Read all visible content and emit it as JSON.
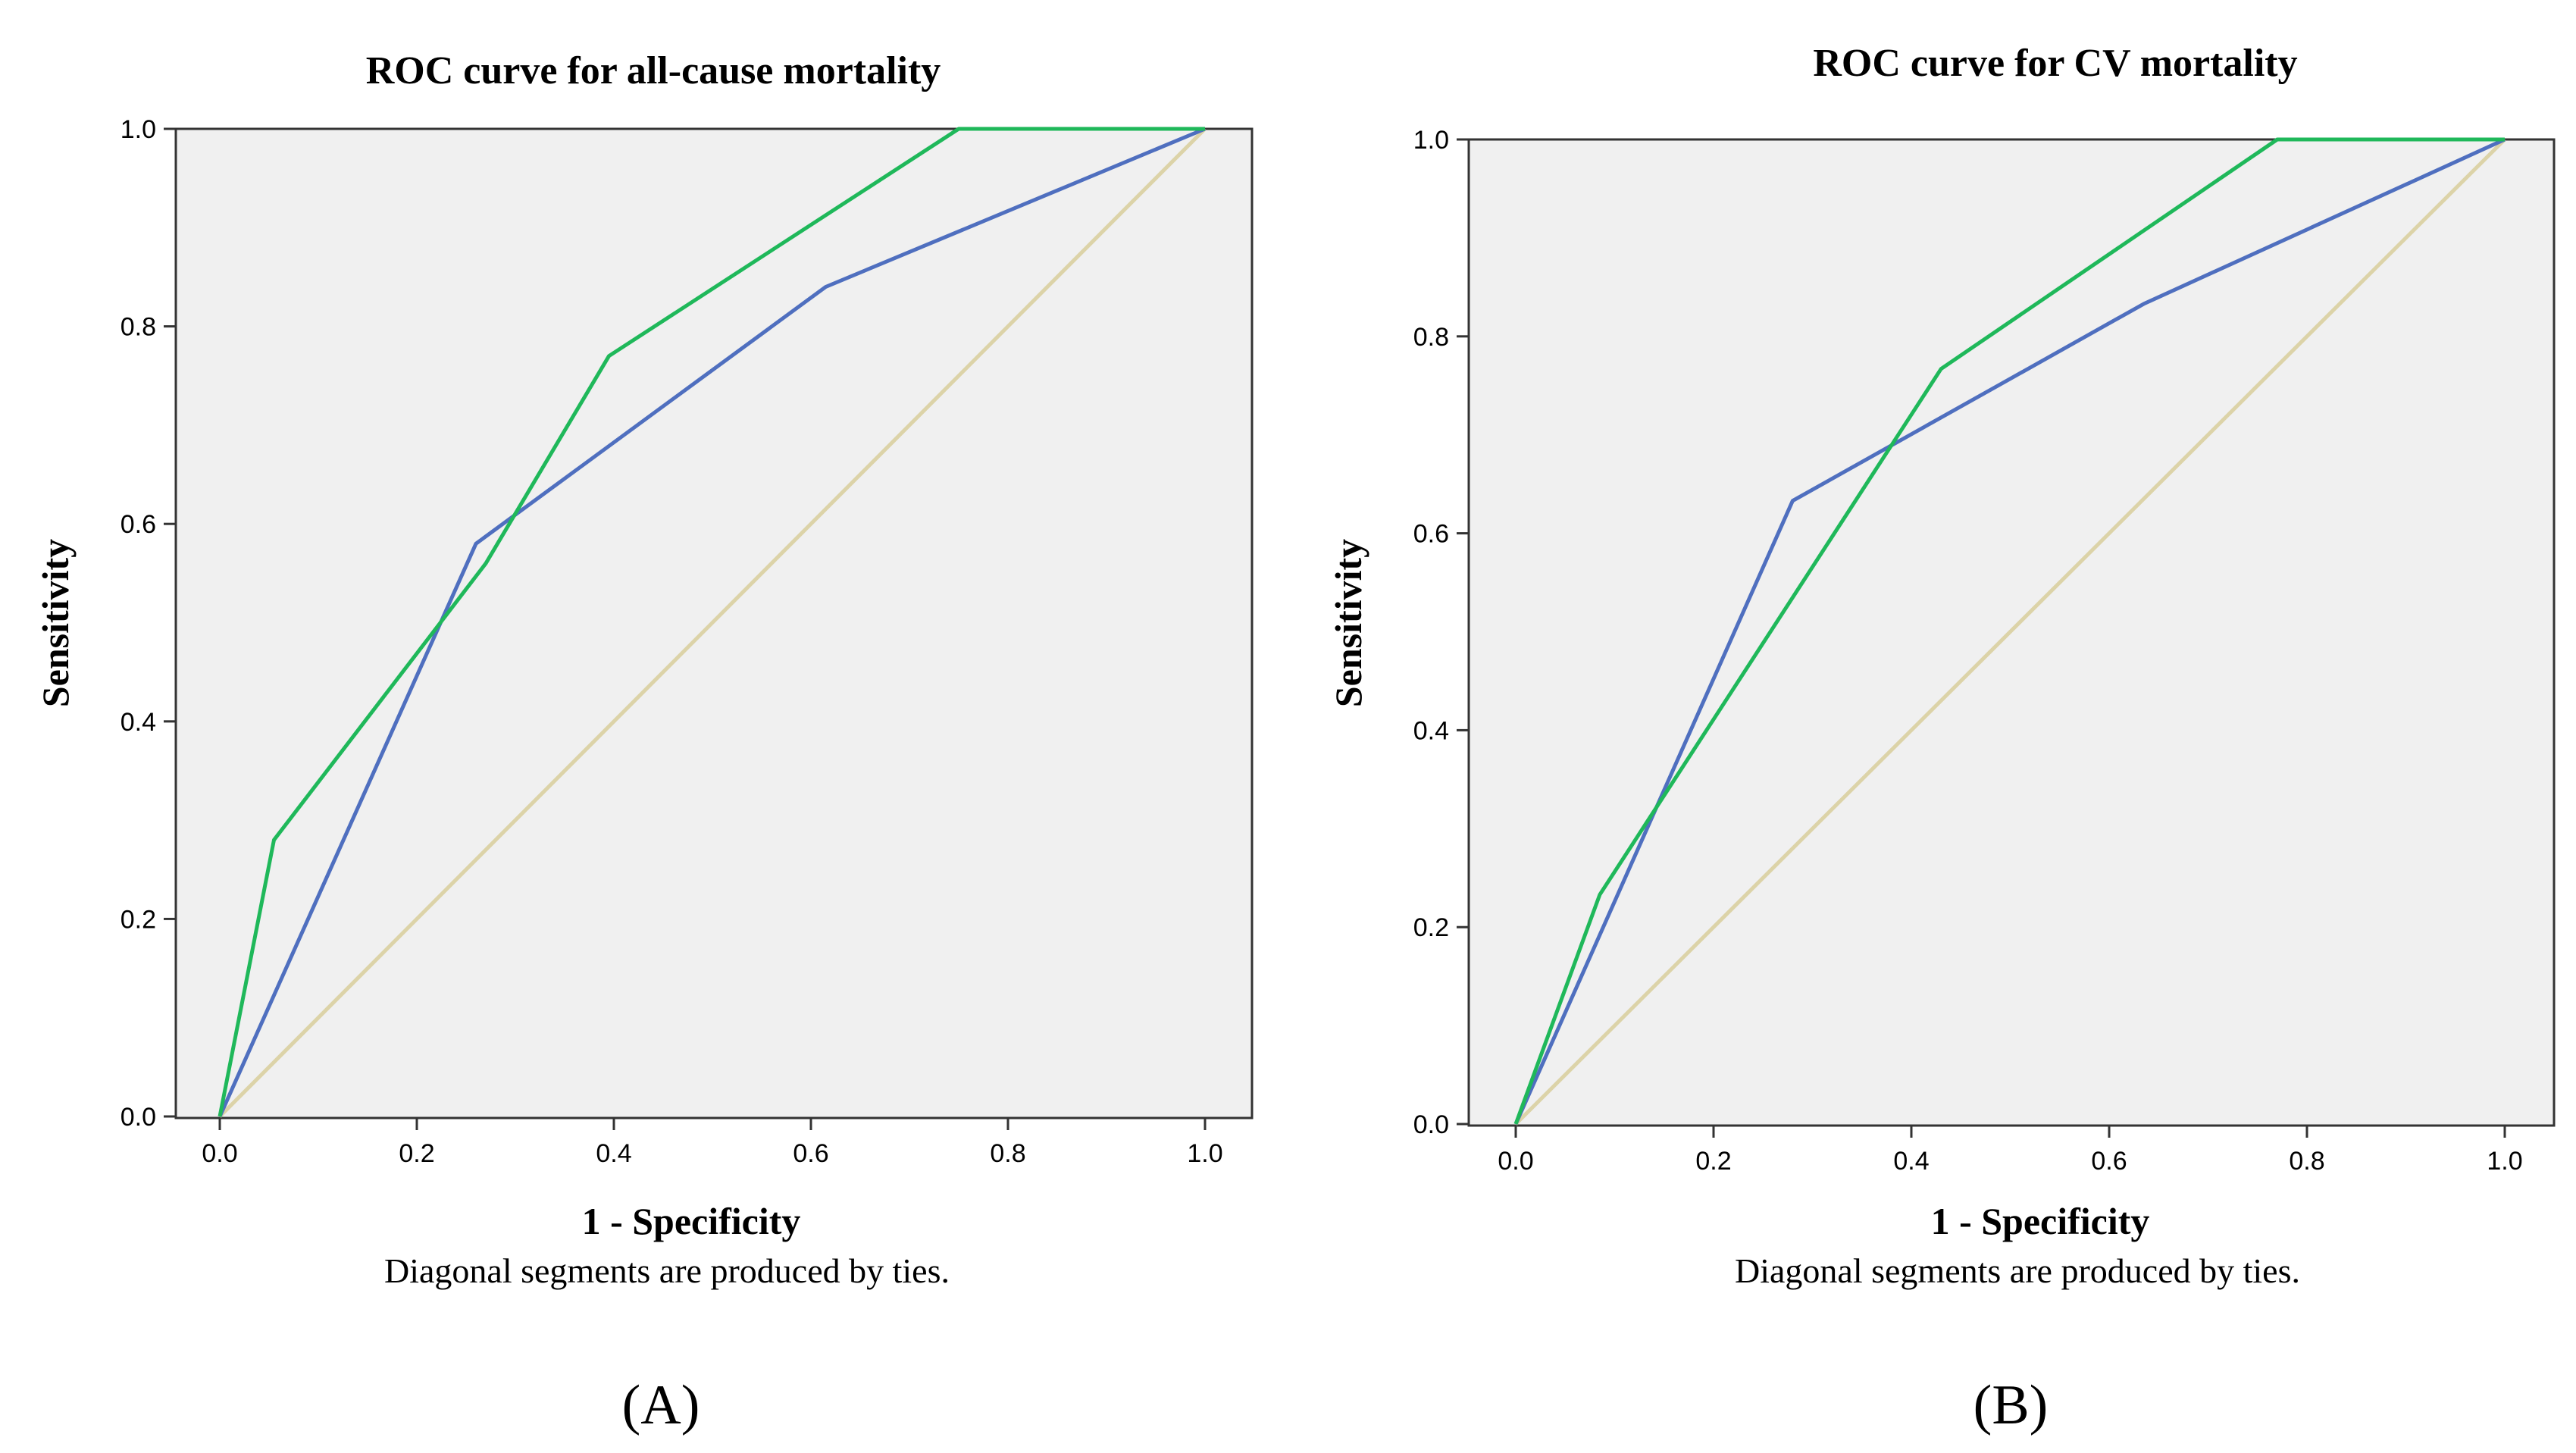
{
  "chart_data": [
    {
      "type": "line",
      "panel": "A",
      "title": "ROC curve for all-cause mortality",
      "xlabel": "1 - Specificity",
      "ylabel": "Sensitivity",
      "note": "Diagonal segments are produced by ties.",
      "xlim": [
        0,
        1
      ],
      "ylim": [
        0,
        1
      ],
      "xticks": [
        "0.0",
        "0.2",
        "0.4",
        "0.6",
        "0.8",
        "1.0"
      ],
      "yticks": [
        "0.0",
        "0.2",
        "0.4",
        "0.6",
        "0.8",
        "1.0"
      ],
      "series": [
        {
          "name": "reference",
          "color": "#dcd3a8",
          "points": [
            [
              0,
              0
            ],
            [
              1,
              1
            ]
          ]
        },
        {
          "name": "blue",
          "color": "#4f6fbf",
          "points": [
            [
              0,
              0
            ],
            [
              0.26,
              0.58
            ],
            [
              0.615,
              0.84
            ],
            [
              1,
              1
            ]
          ]
        },
        {
          "name": "green",
          "color": "#1fb85a",
          "points": [
            [
              0,
              0
            ],
            [
              0.055,
              0.28
            ],
            [
              0.27,
              0.56
            ],
            [
              0.395,
              0.77
            ],
            [
              0.75,
              1.0
            ],
            [
              1,
              1
            ]
          ]
        }
      ]
    },
    {
      "type": "line",
      "panel": "B",
      "title": "ROC curve for CV mortality",
      "xlabel": "1 - Specificity",
      "ylabel": "Sensitivity",
      "note": "Diagonal segments are produced by ties.",
      "xlim": [
        0,
        1
      ],
      "ylim": [
        0,
        1
      ],
      "xticks": [
        "0.0",
        "0.2",
        "0.4",
        "0.6",
        "0.8",
        "1.0"
      ],
      "yticks": [
        "0.0",
        "0.2",
        "0.4",
        "0.6",
        "0.8",
        "1.0"
      ],
      "series": [
        {
          "name": "reference",
          "color": "#dcd3a8",
          "points": [
            [
              0,
              0
            ],
            [
              1,
              1
            ]
          ]
        },
        {
          "name": "blue",
          "color": "#4f6fbf",
          "points": [
            [
              0,
              0
            ],
            [
              0.28,
              0.633
            ],
            [
              0.635,
              0.833
            ],
            [
              1,
              1
            ]
          ]
        },
        {
          "name": "green",
          "color": "#1fb85a",
          "points": [
            [
              0,
              0
            ],
            [
              0.085,
              0.233
            ],
            [
              0.43,
              0.767
            ],
            [
              0.77,
              1.0
            ],
            [
              1,
              1
            ]
          ]
        }
      ]
    }
  ],
  "panel_labels": [
    "(A)",
    "(B)"
  ]
}
